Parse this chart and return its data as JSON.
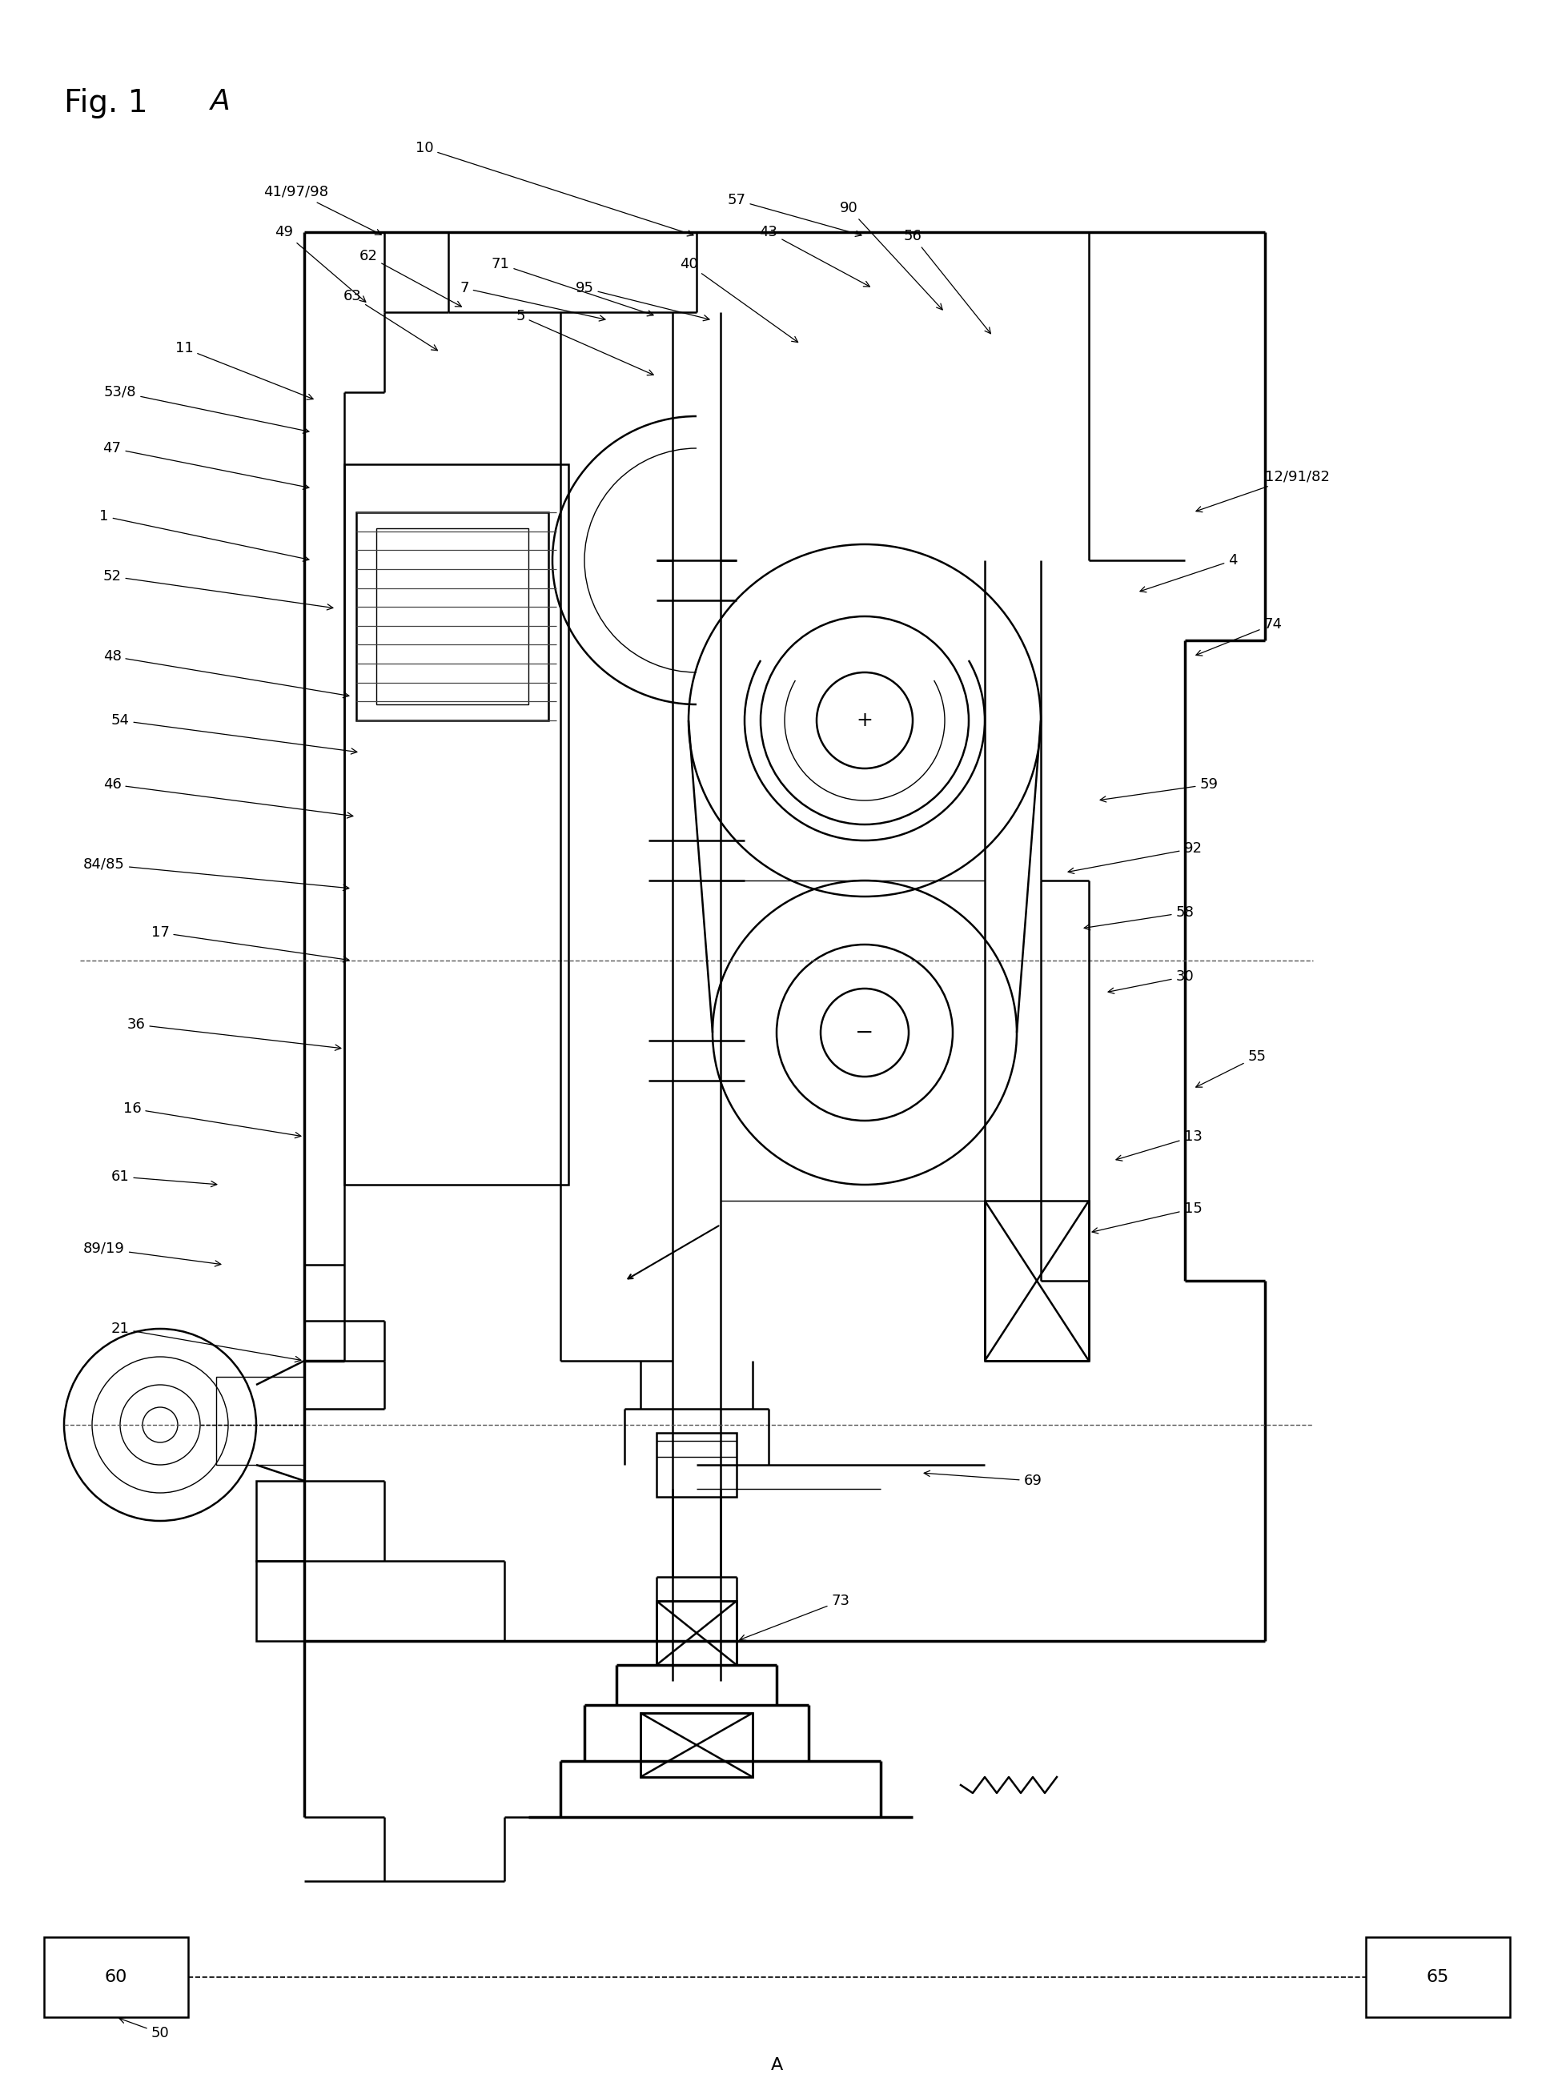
{
  "background_color": "#ffffff",
  "line_color": "#000000",
  "fig_width": 19.41,
  "fig_height": 25.96,
  "title": "Fig. 1A",
  "lw_main": 1.8,
  "lw_thick": 2.5,
  "lw_thin": 1.0,
  "label_fontsize": 13,
  "title_fontsize": 28
}
